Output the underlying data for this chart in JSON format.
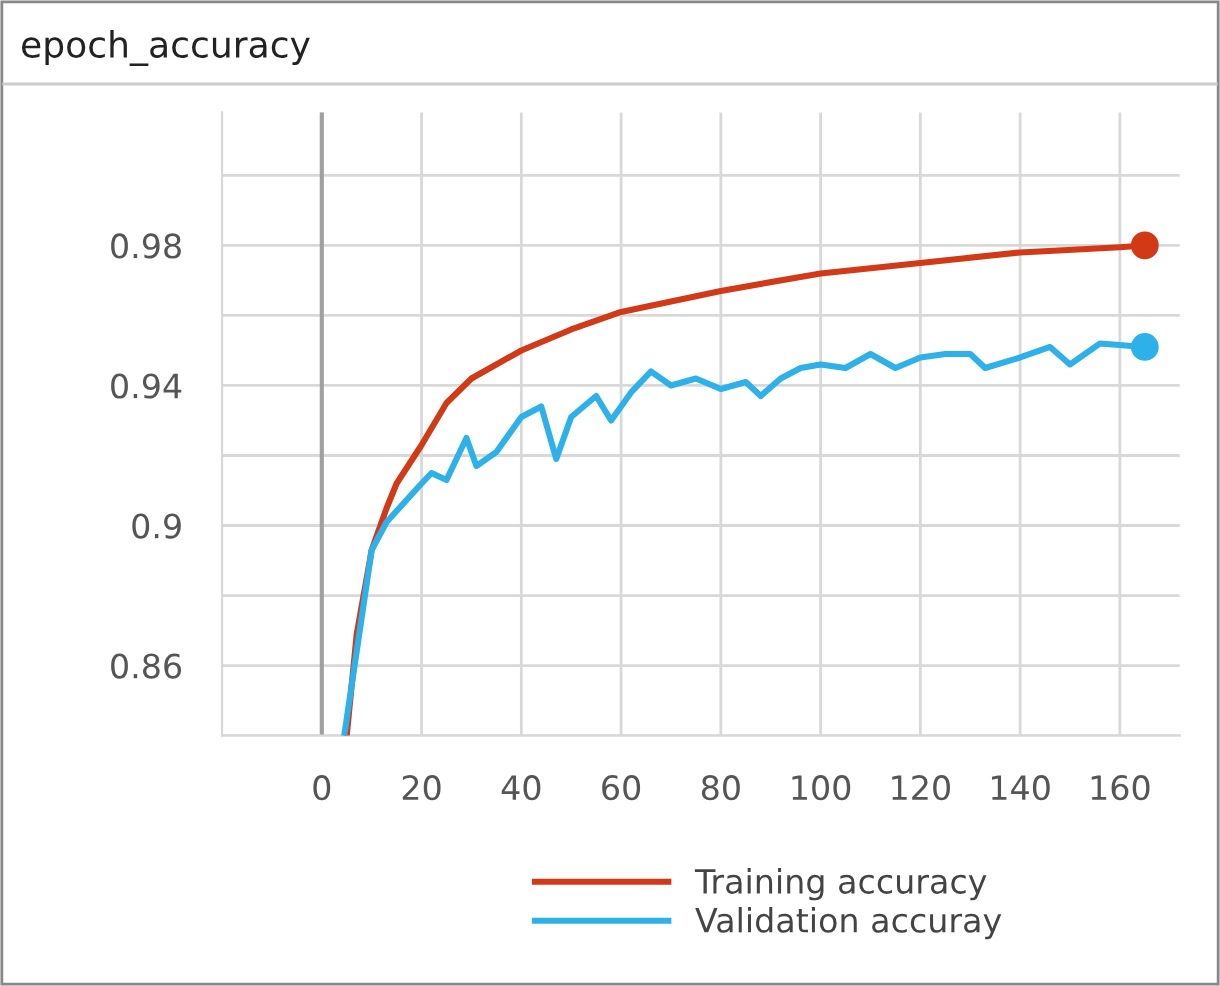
{
  "chart_data": {
    "type": "line",
    "title": "epoch_accuracy",
    "xlim": [
      -20,
      172
    ],
    "xticks": [
      0,
      20,
      40,
      60,
      80,
      100,
      120,
      140,
      160
    ],
    "ylim": [
      0.84,
      1.018
    ],
    "yticks": [
      {
        "value": 0.84,
        "label": null
      },
      0.86,
      {
        "value": 0.88,
        "label": null
      },
      {
        "value": 0.9,
        "label": "0.9"
      },
      {
        "value": 0.92,
        "label": null
      },
      0.94,
      {
        "value": 0.96,
        "label": null
      },
      0.98,
      {
        "value": 1.0,
        "label": null
      }
    ],
    "grid": true,
    "legend": "bottom",
    "ref_lines": [
      {
        "axis": "x",
        "value": 0,
        "color": "#a0a0a0"
      }
    ],
    "series": [
      {
        "name": "Training accuracy",
        "color": "#d23a17",
        "x": [
          5,
          7,
          10,
          13,
          15,
          20,
          25,
          30,
          40,
          50,
          60,
          80,
          100,
          120,
          140,
          160,
          165
        ],
        "values": [
          0.84,
          0.869,
          0.893,
          0.905,
          0.912,
          0.923,
          0.935,
          0.942,
          0.95,
          0.956,
          0.961,
          0.967,
          0.972,
          0.975,
          0.978,
          0.9795,
          0.98
        ]
      },
      {
        "name": "Validation accuray",
        "color": "#2eb1e8",
        "x": [
          4.5,
          10,
          13,
          20,
          22,
          25,
          29,
          31,
          35,
          40,
          44,
          47,
          50,
          55,
          58,
          62,
          66,
          70,
          75,
          80,
          85,
          88,
          92,
          96,
          100,
          105,
          110,
          115,
          120,
          125,
          130,
          133,
          140,
          146,
          150,
          156,
          165
        ],
        "values": [
          0.84,
          0.893,
          0.901,
          0.912,
          0.915,
          0.913,
          0.925,
          0.917,
          0.921,
          0.931,
          0.934,
          0.919,
          0.931,
          0.937,
          0.93,
          0.938,
          0.944,
          0.94,
          0.942,
          0.939,
          0.941,
          0.937,
          0.942,
          0.945,
          0.946,
          0.945,
          0.949,
          0.945,
          0.948,
          0.949,
          0.949,
          0.945,
          0.948,
          0.951,
          0.946,
          0.952,
          0.951
        ]
      }
    ]
  }
}
